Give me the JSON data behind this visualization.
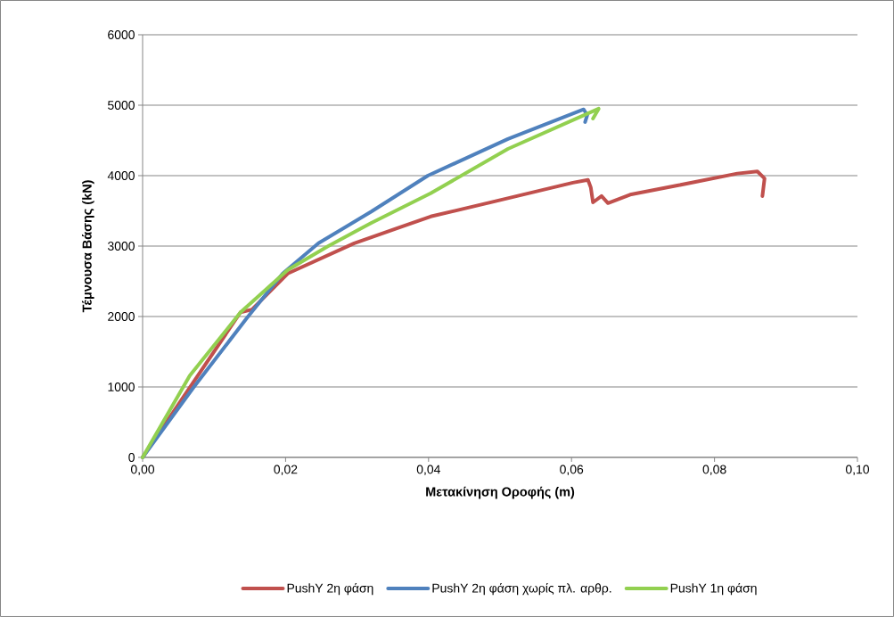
{
  "chart_data": {
    "type": "line",
    "xlabel": "Μετακίνηση Οροφής (m)",
    "ylabel": "Τέμνουσα Βάσης (kN)",
    "xlim": [
      0,
      0.1
    ],
    "ylim": [
      0,
      6000
    ],
    "xticks": [
      {
        "value": 0,
        "label": "0,00"
      },
      {
        "value": 0.02,
        "label": "0,02"
      },
      {
        "value": 0.04,
        "label": "0,04"
      },
      {
        "value": 0.06,
        "label": "0,06"
      },
      {
        "value": 0.08,
        "label": "0,08"
      },
      {
        "value": 0.1,
        "label": "0,10"
      }
    ],
    "yticks": [
      0,
      1000,
      2000,
      3000,
      4000,
      5000,
      6000
    ],
    "grid": "y",
    "legend": "bottom",
    "line_style": "solid",
    "series": [
      {
        "name": "PushY 2η φάση",
        "color": "#c0504d",
        "x": [
          0,
          0.0066,
          0.0137,
          0.0153,
          0.0203,
          0.0296,
          0.0403,
          0.0499,
          0.0602,
          0.0623,
          0.0627,
          0.063,
          0.0642,
          0.0651,
          0.0682,
          0.0748,
          0.0832,
          0.086,
          0.087,
          0.0867
        ],
        "values": [
          0,
          null,
          2060,
          2100,
          2610,
          3040,
          3420,
          3650,
          3900,
          3940,
          3830,
          3620,
          3710,
          3610,
          3730,
          3860,
          4030,
          4060,
          3960,
          3710
        ]
      },
      {
        "name": "PushY 2η φάση χωρίς πλ. αρθρ.",
        "color": "#4f81bd",
        "x": [
          0,
          0.0071,
          0.0146,
          0.0196,
          0.0246,
          0.032,
          0.0399,
          0.0511,
          0.0617,
          0.0622,
          0.0619
        ],
        "values": [
          0,
          990,
          1980,
          2610,
          3040,
          3490,
          4000,
          4520,
          4940,
          4860,
          4760
        ]
      },
      {
        "name": "PushY 1η φάση",
        "color": "#92d050",
        "x": [
          0,
          0.0066,
          0.0137,
          0.0203,
          0.0258,
          0.032,
          0.0403,
          0.0511,
          0.0638,
          0.063
        ],
        "values": [
          0,
          1160,
          2060,
          2660,
          2990,
          3330,
          3750,
          4380,
          4950,
          4810
        ]
      }
    ]
  }
}
